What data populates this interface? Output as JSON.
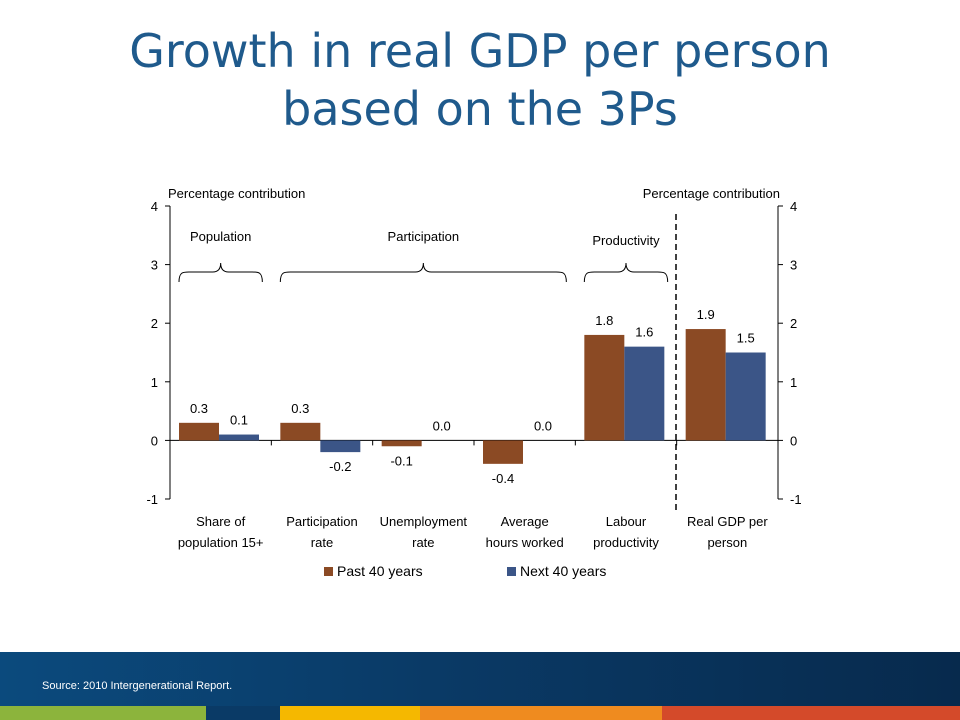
{
  "title_line1": "Growth in real GDP per person",
  "title_line2": "based on the 3Ps",
  "source": "Source: 2010 Intergenerational Report.",
  "chart_data": {
    "type": "bar",
    "ylabel_left": "Percentage contribution",
    "ylabel_right": "Percentage contribution",
    "ylim": [
      -1,
      4
    ],
    "yticks": [
      "-1",
      "0",
      "1",
      "2",
      "3",
      "4"
    ],
    "categories": [
      [
        "Share of",
        "population 15+"
      ],
      [
        "Participation",
        "rate"
      ],
      [
        "Unemployment",
        "rate"
      ],
      [
        "Average",
        "hours worked"
      ],
      [
        "Labour",
        "productivity"
      ],
      [
        "Real GDP per",
        "person"
      ]
    ],
    "series": [
      {
        "name": "Past 40 years",
        "color": "#8b4a24",
        "values": [
          0.3,
          0.3,
          -0.1,
          -0.4,
          1.8,
          1.9
        ],
        "labels": [
          "0.3",
          "0.3",
          "-0.1",
          "-0.4",
          "1.8",
          "1.9"
        ]
      },
      {
        "name": "Next 40 years",
        "color": "#3b5587",
        "values": [
          0.1,
          -0.2,
          0.0,
          0.0,
          1.6,
          1.5
        ],
        "labels": [
          "0.1",
          "-0.2",
          "0.0",
          "0.0",
          "1.6",
          "1.5"
        ]
      }
    ],
    "groups": [
      {
        "label": "Population",
        "from": 0,
        "to": 0
      },
      {
        "label": "Participation",
        "from": 1,
        "to": 3
      },
      {
        "label": "Productivity",
        "from": 4,
        "to": 4
      }
    ],
    "grid": false,
    "legend_position": "bottom"
  },
  "colors": {
    "title": "#1f5a8c",
    "past": "#8b4a24",
    "next": "#3b5587",
    "stripes": [
      "#8cb43c",
      "#0a3a66",
      "#f5b800",
      "#ef8b1f",
      "#d44a2a"
    ]
  }
}
